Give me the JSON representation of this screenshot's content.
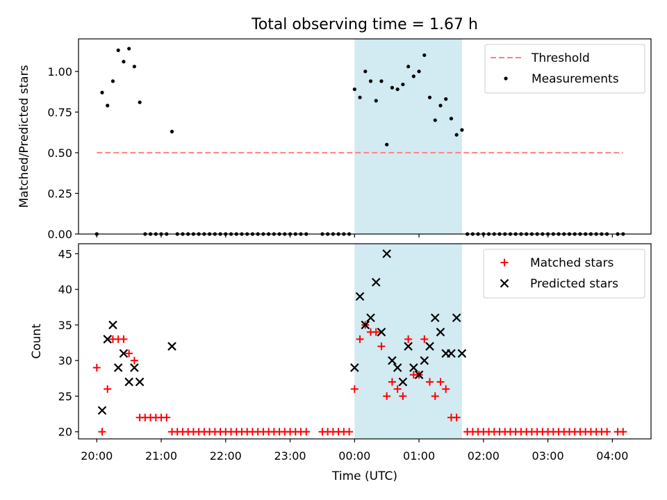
{
  "figure": {
    "title": "Total observing time = 1.67 h"
  },
  "chart_data": [
    {
      "type": "scatter",
      "panel": "top",
      "title": "Total observing time = 1.67 h",
      "xlabel": "",
      "ylabel": "Matched/Predicted stars",
      "ylim": [
        0.0,
        1.2
      ],
      "xlim": [
        "19:43",
        "04:36"
      ],
      "yticks": [
        "0.00",
        "0.25",
        "0.50",
        "0.75",
        "1.00"
      ],
      "threshold": {
        "name": "Threshold",
        "value": 0.5,
        "x_start": "20:00",
        "x_end": "04:10",
        "color": "#ff7f7f",
        "style": "dashed"
      },
      "highlight_span": {
        "x_start": "00:00",
        "x_end": "01:40",
        "color": "#add8e6"
      },
      "legend": {
        "placement": "top-right",
        "entries": [
          "Threshold",
          "Measurements"
        ]
      },
      "series": [
        {
          "name": "Measurements",
          "marker": "dot",
          "color": "#000000",
          "points": [
            [
              "20:00",
              0
            ],
            [
              "20:05",
              0.87
            ],
            [
              "20:10",
              0.79
            ],
            [
              "20:15",
              0.94
            ],
            [
              "20:20",
              1.13
            ],
            [
              "20:25",
              1.06
            ],
            [
              "20:30",
              1.14
            ],
            [
              "20:35",
              1.03
            ],
            [
              "20:40",
              0.81
            ],
            [
              "20:45",
              0
            ],
            [
              "20:50",
              0
            ],
            [
              "20:55",
              0
            ],
            [
              "21:00",
              0
            ],
            [
              "21:05",
              0
            ],
            [
              "21:10",
              0.63
            ],
            [
              "21:15",
              0
            ],
            [
              "21:20",
              0
            ],
            [
              "21:25",
              0
            ],
            [
              "21:30",
              0
            ],
            [
              "21:35",
              0
            ],
            [
              "21:40",
              0
            ],
            [
              "21:45",
              0
            ],
            [
              "21:50",
              0
            ],
            [
              "21:55",
              0
            ],
            [
              "22:00",
              0
            ],
            [
              "22:05",
              0
            ],
            [
              "22:10",
              0
            ],
            [
              "22:15",
              0
            ],
            [
              "22:20",
              0
            ],
            [
              "22:25",
              0
            ],
            [
              "22:30",
              0
            ],
            [
              "22:35",
              0
            ],
            [
              "22:40",
              0
            ],
            [
              "22:45",
              0
            ],
            [
              "22:50",
              0
            ],
            [
              "22:55",
              0
            ],
            [
              "23:00",
              0
            ],
            [
              "23:05",
              0
            ],
            [
              "23:10",
              0
            ],
            [
              "23:15",
              0
            ],
            [
              "23:30",
              0
            ],
            [
              "23:35",
              0
            ],
            [
              "23:40",
              0
            ],
            [
              "23:45",
              0
            ],
            [
              "23:50",
              0
            ],
            [
              "23:55",
              0
            ],
            [
              "00:00",
              0.89
            ],
            [
              "00:05",
              0.84
            ],
            [
              "00:10",
              1.0
            ],
            [
              "00:15",
              0.94
            ],
            [
              "00:20",
              0.82
            ],
            [
              "00:25",
              0.94
            ],
            [
              "00:30",
              0.55
            ],
            [
              "00:35",
              0.9
            ],
            [
              "00:40",
              0.89
            ],
            [
              "00:45",
              0.92
            ],
            [
              "00:50",
              1.03
            ],
            [
              "00:55",
              0.97
            ],
            [
              "01:00",
              1.0
            ],
            [
              "01:05",
              1.1
            ],
            [
              "01:10",
              0.84
            ],
            [
              "01:15",
              0.7
            ],
            [
              "01:20",
              0.79
            ],
            [
              "01:25",
              0.83
            ],
            [
              "01:30",
              0.71
            ],
            [
              "01:35",
              0.61
            ],
            [
              "01:40",
              0.64
            ],
            [
              "01:45",
              0
            ],
            [
              "01:50",
              0
            ],
            [
              "01:55",
              0
            ],
            [
              "02:00",
              0
            ],
            [
              "02:05",
              0
            ],
            [
              "02:10",
              0
            ],
            [
              "02:15",
              0
            ],
            [
              "02:20",
              0
            ],
            [
              "02:25",
              0
            ],
            [
              "02:30",
              0
            ],
            [
              "02:35",
              0
            ],
            [
              "02:40",
              0
            ],
            [
              "02:45",
              0
            ],
            [
              "02:50",
              0
            ],
            [
              "02:55",
              0
            ],
            [
              "03:00",
              0
            ],
            [
              "03:05",
              0
            ],
            [
              "03:10",
              0
            ],
            [
              "03:15",
              0
            ],
            [
              "03:20",
              0
            ],
            [
              "03:25",
              0
            ],
            [
              "03:30",
              0
            ],
            [
              "03:35",
              0
            ],
            [
              "03:40",
              0
            ],
            [
              "03:45",
              0
            ],
            [
              "03:50",
              0
            ],
            [
              "03:55",
              0
            ],
            [
              "04:05",
              0
            ],
            [
              "04:10",
              0
            ]
          ]
        }
      ]
    },
    {
      "type": "scatter",
      "panel": "bottom",
      "title": "",
      "xlabel": "Time (UTC)",
      "ylabel": "Count",
      "ylim": [
        19,
        46.4
      ],
      "xlim": [
        "19:43",
        "04:36"
      ],
      "yticks": [
        "20",
        "25",
        "30",
        "35",
        "40",
        "45"
      ],
      "xticks": [
        "20:00",
        "21:00",
        "22:00",
        "23:00",
        "00:00",
        "01:00",
        "02:00",
        "03:00",
        "04:00"
      ],
      "highlight_span": {
        "x_start": "00:00",
        "x_end": "01:40",
        "color": "#add8e6"
      },
      "legend": {
        "placement": "top-right",
        "entries": [
          "Matched stars",
          "Predicted stars"
        ]
      },
      "series": [
        {
          "name": "Matched stars",
          "marker": "plus",
          "color": "#ff0000",
          "points": [
            [
              "20:00",
              29
            ],
            [
              "20:05",
              20
            ],
            [
              "20:10",
              26
            ],
            [
              "20:15",
              33
            ],
            [
              "20:20",
              33
            ],
            [
              "20:25",
              33
            ],
            [
              "20:30",
              31
            ],
            [
              "20:35",
              30
            ],
            [
              "20:40",
              22
            ],
            [
              "20:45",
              22
            ],
            [
              "20:50",
              22
            ],
            [
              "20:55",
              22
            ],
            [
              "21:00",
              22
            ],
            [
              "21:05",
              22
            ],
            [
              "21:10",
              20
            ],
            [
              "21:15",
              20
            ],
            [
              "21:20",
              20
            ],
            [
              "21:25",
              20
            ],
            [
              "21:30",
              20
            ],
            [
              "21:35",
              20
            ],
            [
              "21:40",
              20
            ],
            [
              "21:45",
              20
            ],
            [
              "21:50",
              20
            ],
            [
              "21:55",
              20
            ],
            [
              "22:00",
              20
            ],
            [
              "22:05",
              20
            ],
            [
              "22:10",
              20
            ],
            [
              "22:15",
              20
            ],
            [
              "22:20",
              20
            ],
            [
              "22:25",
              20
            ],
            [
              "22:30",
              20
            ],
            [
              "22:35",
              20
            ],
            [
              "22:40",
              20
            ],
            [
              "22:45",
              20
            ],
            [
              "22:50",
              20
            ],
            [
              "22:55",
              20
            ],
            [
              "23:00",
              20
            ],
            [
              "23:05",
              20
            ],
            [
              "23:10",
              20
            ],
            [
              "23:15",
              20
            ],
            [
              "23:30",
              20
            ],
            [
              "23:35",
              20
            ],
            [
              "23:40",
              20
            ],
            [
              "23:45",
              20
            ],
            [
              "23:50",
              20
            ],
            [
              "23:55",
              20
            ],
            [
              "00:00",
              26
            ],
            [
              "00:05",
              33
            ],
            [
              "00:10",
              35
            ],
            [
              "00:15",
              34
            ],
            [
              "00:20",
              34
            ],
            [
              "00:25",
              32
            ],
            [
              "00:30",
              25
            ],
            [
              "00:35",
              27
            ],
            [
              "00:40",
              26
            ],
            [
              "00:45",
              25
            ],
            [
              "00:50",
              33
            ],
            [
              "00:55",
              28
            ],
            [
              "01:00",
              28
            ],
            [
              "01:05",
              33
            ],
            [
              "01:10",
              27
            ],
            [
              "01:15",
              25
            ],
            [
              "01:20",
              27
            ],
            [
              "01:25",
              26
            ],
            [
              "01:30",
              22
            ],
            [
              "01:35",
              22
            ],
            [
              "01:45",
              20
            ],
            [
              "01:50",
              20
            ],
            [
              "01:55",
              20
            ],
            [
              "02:00",
              20
            ],
            [
              "02:05",
              20
            ],
            [
              "02:10",
              20
            ],
            [
              "02:15",
              20
            ],
            [
              "02:20",
              20
            ],
            [
              "02:25",
              20
            ],
            [
              "02:30",
              20
            ],
            [
              "02:35",
              20
            ],
            [
              "02:40",
              20
            ],
            [
              "02:45",
              20
            ],
            [
              "02:50",
              20
            ],
            [
              "02:55",
              20
            ],
            [
              "03:00",
              20
            ],
            [
              "03:05",
              20
            ],
            [
              "03:10",
              20
            ],
            [
              "03:15",
              20
            ],
            [
              "03:20",
              20
            ],
            [
              "03:25",
              20
            ],
            [
              "03:30",
              20
            ],
            [
              "03:35",
              20
            ],
            [
              "03:40",
              20
            ],
            [
              "03:45",
              20
            ],
            [
              "03:50",
              20
            ],
            [
              "03:55",
              20
            ],
            [
              "04:05",
              20
            ],
            [
              "04:10",
              20
            ]
          ]
        },
        {
          "name": "Predicted stars",
          "marker": "x",
          "color": "#000000",
          "points": [
            [
              "20:05",
              23
            ],
            [
              "20:10",
              33
            ],
            [
              "20:15",
              35
            ],
            [
              "20:20",
              29
            ],
            [
              "20:25",
              31
            ],
            [
              "20:30",
              27
            ],
            [
              "20:35",
              29
            ],
            [
              "20:40",
              27
            ],
            [
              "21:10",
              32
            ],
            [
              "00:00",
              29
            ],
            [
              "00:05",
              39
            ],
            [
              "00:10",
              35
            ],
            [
              "00:15",
              36
            ],
            [
              "00:20",
              41
            ],
            [
              "00:25",
              34
            ],
            [
              "00:30",
              45
            ],
            [
              "00:35",
              30
            ],
            [
              "00:40",
              29
            ],
            [
              "00:45",
              27
            ],
            [
              "00:50",
              32
            ],
            [
              "00:55",
              29
            ],
            [
              "01:00",
              28
            ],
            [
              "01:05",
              30
            ],
            [
              "01:10",
              32
            ],
            [
              "01:15",
              36
            ],
            [
              "01:20",
              34
            ],
            [
              "01:25",
              31
            ],
            [
              "01:30",
              31
            ],
            [
              "01:35",
              36
            ],
            [
              "01:40",
              31
            ]
          ]
        }
      ]
    }
  ]
}
